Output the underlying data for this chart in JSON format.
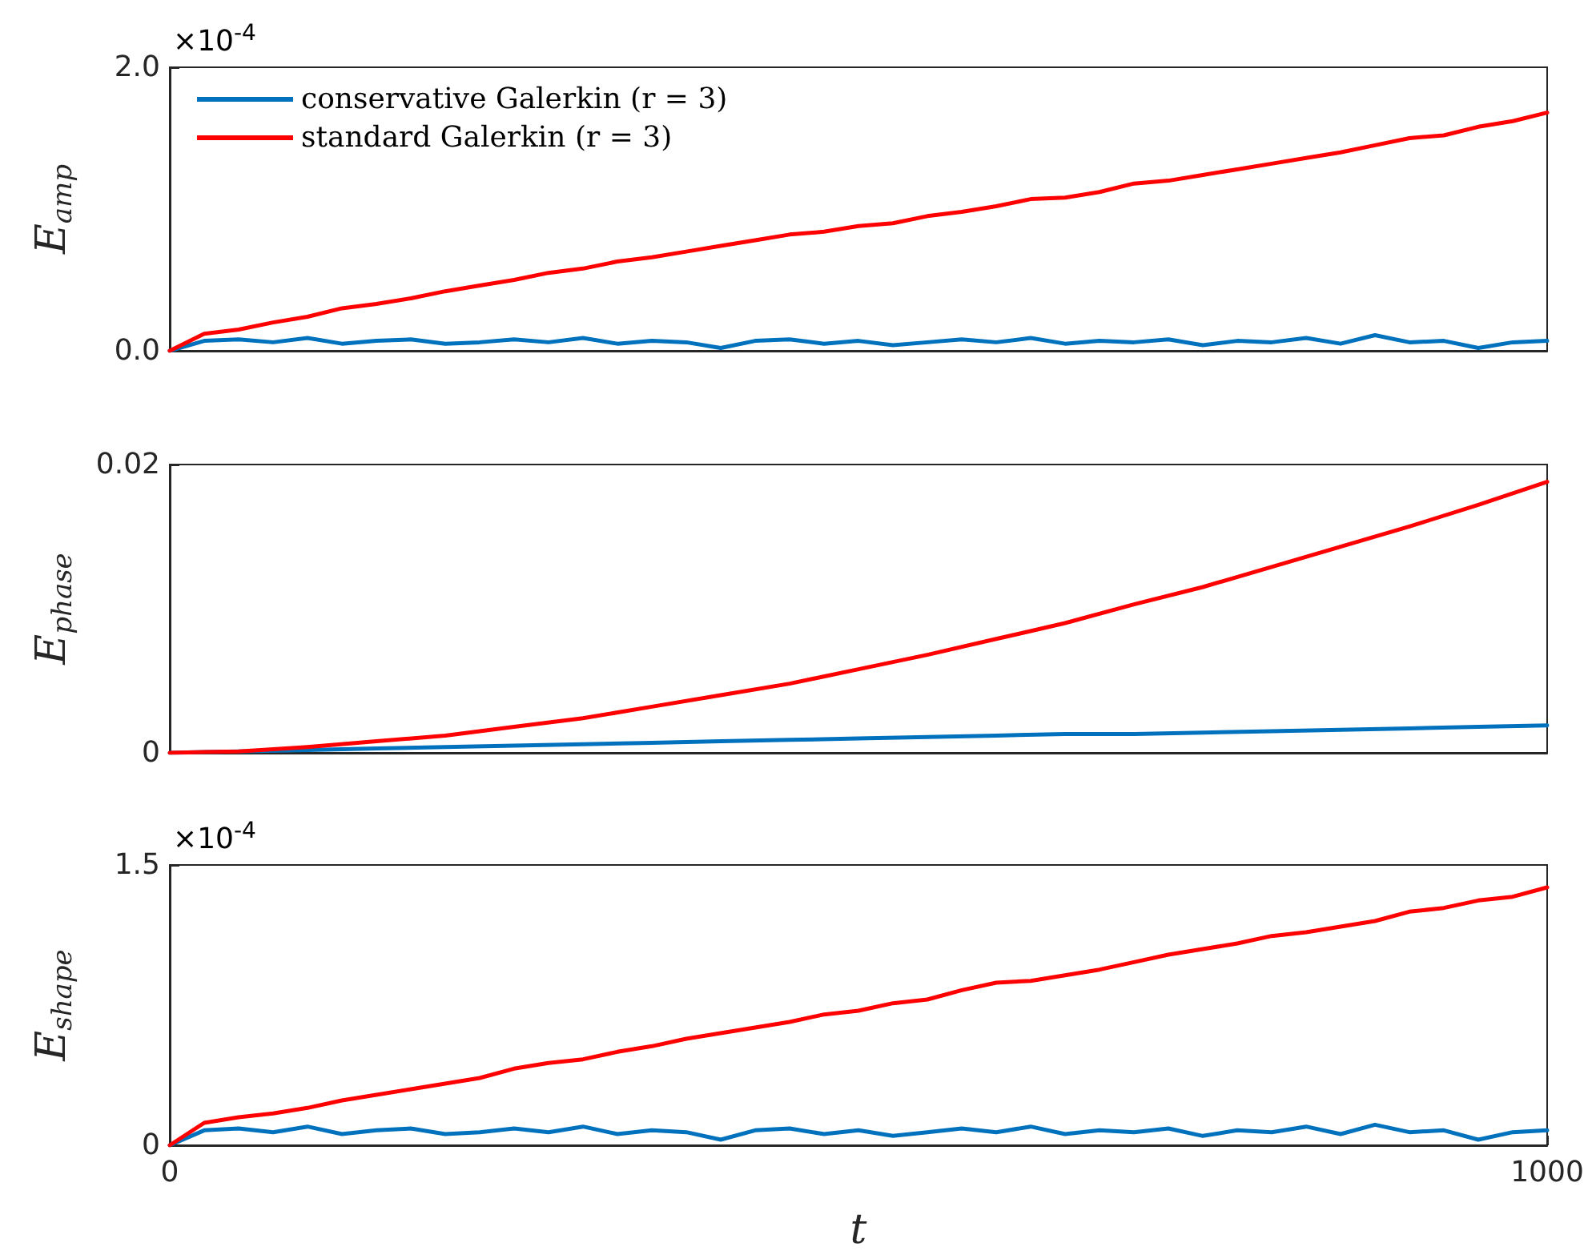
{
  "chart_data": [
    {
      "type": "line",
      "ylabel": "E$_{amp}$",
      "legend": "top left",
      "tick_labels": "y",
      "annotations": [
        "×10$^{-4}$"
      ],
      "xlim": [
        0,
        1000
      ],
      "ylim": [
        0,
        2
      ],
      "yticks": [
        {
          "value": 0,
          "label": "0.0"
        },
        {
          "value": 2,
          "label": "2.0"
        }
      ],
      "x": [
        0,
        25,
        50,
        75,
        100,
        125,
        150,
        175,
        200,
        225,
        250,
        275,
        300,
        325,
        350,
        375,
        400,
        425,
        450,
        475,
        500,
        525,
        550,
        575,
        600,
        625,
        650,
        675,
        700,
        725,
        750,
        775,
        800,
        825,
        850,
        875,
        900,
        925,
        950,
        975,
        1000
      ],
      "series": [
        {
          "name": "conservative Galerkin (r = 3)",
          "color": "#0072bd",
          "values": [
            0,
            0.07,
            0.08,
            0.06,
            0.09,
            0.05,
            0.07,
            0.08,
            0.05,
            0.06,
            0.08,
            0.06,
            0.09,
            0.05,
            0.07,
            0.06,
            0.02,
            0.07,
            0.08,
            0.05,
            0.07,
            0.04,
            0.06,
            0.08,
            0.06,
            0.09,
            0.05,
            0.07,
            0.06,
            0.08,
            0.04,
            0.07,
            0.06,
            0.09,
            0.05,
            0.11,
            0.06,
            0.07,
            0.02,
            0.06,
            0.07
          ]
        },
        {
          "name": "standard Galerkin (r = 3)",
          "color": "#ff0000",
          "values": [
            0,
            0.12,
            0.15,
            0.2,
            0.24,
            0.3,
            0.33,
            0.37,
            0.42,
            0.46,
            0.5,
            0.55,
            0.58,
            0.63,
            0.66,
            0.7,
            0.74,
            0.78,
            0.82,
            0.84,
            0.88,
            0.9,
            0.95,
            0.98,
            1.02,
            1.07,
            1.08,
            1.12,
            1.18,
            1.2,
            1.24,
            1.28,
            1.32,
            1.36,
            1.4,
            1.45,
            1.5,
            1.52,
            1.58,
            1.62,
            1.68
          ]
        }
      ]
    },
    {
      "type": "line",
      "ylabel": "E$_{phase}$",
      "tick_labels": "y",
      "xlim": [
        0,
        1000
      ],
      "ylim": [
        0,
        0.02
      ],
      "yticks": [
        0,
        0.02
      ],
      "x": [
        0,
        50,
        100,
        150,
        200,
        250,
        300,
        350,
        400,
        450,
        500,
        550,
        600,
        650,
        700,
        750,
        800,
        850,
        900,
        950,
        1000
      ],
      "series": [
        {
          "color": "#0072bd",
          "values": [
            0,
            0.0001,
            0.0002,
            0.0003,
            0.0004,
            0.0005,
            0.0006,
            0.0007,
            0.0008,
            0.0009,
            0.001,
            0.0011,
            0.0012,
            0.0013,
            0.0013,
            0.0014,
            0.0015,
            0.0016,
            0.0017,
            0.0018,
            0.0019
          ]
        },
        {
          "color": "#ff0000",
          "values": [
            0,
            0.0001,
            0.0004,
            0.0008,
            0.0012,
            0.0018,
            0.0024,
            0.0032,
            0.004,
            0.0048,
            0.0058,
            0.0068,
            0.0079,
            0.009,
            0.0103,
            0.0115,
            0.0129,
            0.0143,
            0.0157,
            0.0172,
            0.0188
          ]
        }
      ]
    },
    {
      "type": "line",
      "ylabel": "E$_{shape}$",
      "xlabel": "t",
      "annotations": [
        "×10$^{-4}$"
      ],
      "xlim": [
        0,
        1000
      ],
      "xticks": [
        0,
        1000
      ],
      "ylim": [
        0,
        1.5
      ],
      "yticks": [
        0,
        1.5
      ],
      "x": [
        0,
        25,
        50,
        75,
        100,
        125,
        150,
        175,
        200,
        225,
        250,
        275,
        300,
        325,
        350,
        375,
        400,
        425,
        450,
        475,
        500,
        525,
        550,
        575,
        600,
        625,
        650,
        675,
        700,
        725,
        750,
        775,
        800,
        825,
        850,
        875,
        900,
        925,
        950,
        975,
        1000
      ],
      "series": [
        {
          "color": "#0072bd",
          "values": [
            0,
            0.08,
            0.09,
            0.07,
            0.1,
            0.06,
            0.08,
            0.09,
            0.06,
            0.07,
            0.09,
            0.07,
            0.1,
            0.06,
            0.08,
            0.07,
            0.03,
            0.08,
            0.09,
            0.06,
            0.08,
            0.05,
            0.07,
            0.09,
            0.07,
            0.1,
            0.06,
            0.08,
            0.07,
            0.09,
            0.05,
            0.08,
            0.07,
            0.1,
            0.06,
            0.11,
            0.07,
            0.08,
            0.03,
            0.07,
            0.08
          ]
        },
        {
          "color": "#ff0000",
          "values": [
            0,
            0.12,
            0.15,
            0.17,
            0.2,
            0.24,
            0.27,
            0.3,
            0.33,
            0.36,
            0.41,
            0.44,
            0.46,
            0.5,
            0.53,
            0.57,
            0.6,
            0.63,
            0.66,
            0.7,
            0.72,
            0.76,
            0.78,
            0.83,
            0.87,
            0.88,
            0.91,
            0.94,
            0.98,
            1.02,
            1.05,
            1.08,
            1.12,
            1.14,
            1.17,
            1.2,
            1.25,
            1.27,
            1.31,
            1.33,
            1.38
          ]
        }
      ]
    }
  ]
}
